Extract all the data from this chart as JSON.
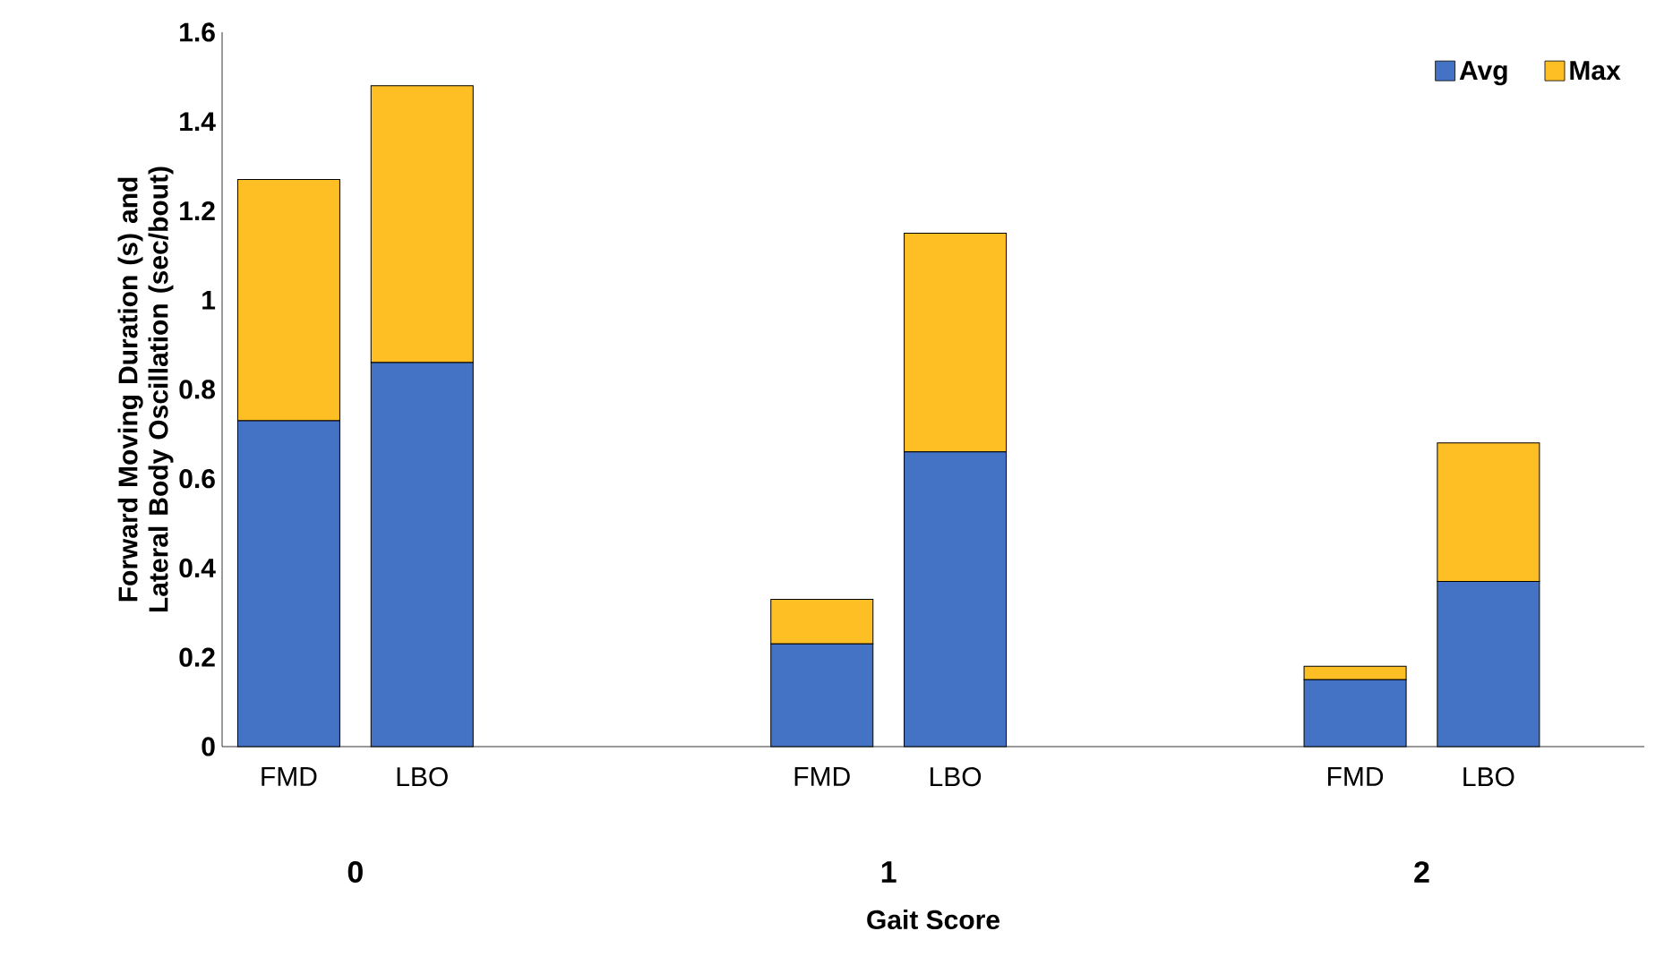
{
  "chart_data": {
    "type": "bar",
    "stacked": true,
    "xlabel": "Gait Score",
    "ylabel": "Forward Moving Duration (s) and Lateral Body Oscillation (sec/bout)",
    "categories": [
      "FMD",
      "LBO",
      null,
      null,
      "FMD",
      "LBO",
      null,
      null,
      "FMD",
      "LBO"
    ],
    "series": [
      {
        "name": "Avg",
        "color": "#4472c4",
        "values": [
          0.73,
          0.86,
          null,
          null,
          0.23,
          0.66,
          null,
          null,
          0.15,
          0.37
        ]
      },
      {
        "name": "Max",
        "color": "#fdbf24",
        "values": [
          0.54,
          0.62,
          null,
          null,
          0.1,
          0.49,
          null,
          null,
          0.03,
          0.31
        ]
      }
    ],
    "ylim": [
      0,
      1.6
    ],
    "yticks": [
      0,
      0.2,
      0.4,
      0.6,
      0.8,
      1,
      1.2,
      1.4,
      1.6
    ],
    "annotations": [
      "0",
      "1",
      "2"
    ],
    "legend": "top right",
    "grid": false
  }
}
